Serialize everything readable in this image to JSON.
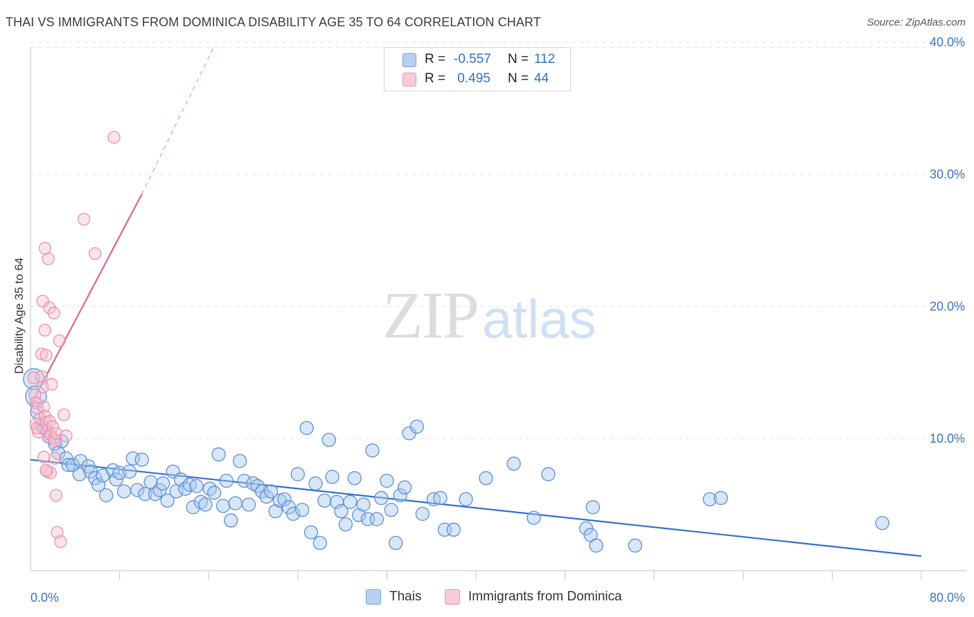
{
  "title": "THAI VS IMMIGRANTS FROM DOMINICA DISABILITY AGE 35 TO 64 CORRELATION CHART",
  "source": "Source: ZipAtlas.com",
  "watermark": {
    "zip": "ZIP",
    "atlas": "atlas"
  },
  "legend": {
    "rows": [
      {
        "r_label": "R =",
        "r_value": "-0.557",
        "n_label": "N =",
        "n_value": "112"
      },
      {
        "r_label": "R =",
        "r_value": " 0.495",
        "n_label": "N =",
        "n_value": "44"
      }
    ]
  },
  "bottom_legend": [
    "Thais",
    "Immigrants from Dominica"
  ],
  "colors": {
    "thai_fill": "#a9c7ee",
    "thai_stroke": "#5b8fd6",
    "thai_line": "#2f6fd0",
    "dom_fill": "#f6c3d3",
    "dom_stroke": "#e890ad",
    "dom_line": "#e0608e",
    "grid": "#e3e3e3",
    "tick": "#3a72c0"
  },
  "chart_data": {
    "type": "scatter",
    "title": "THAI VS IMMIGRANTS FROM DOMINICA DISABILITY AGE 35 TO 64 CORRELATION CHART",
    "xlabel": "",
    "ylabel": "Disability Age 35 to 64",
    "xlim": [
      0,
      80
    ],
    "ylim": [
      0,
      42
    ],
    "x_tick_labels": [
      "0.0%",
      "80.0%"
    ],
    "y_ticks": [
      10,
      20,
      30,
      40
    ],
    "y_tick_labels": [
      "10.0%",
      "20.0%",
      "30.0%",
      "40.0%"
    ],
    "grid": true,
    "legend_position": "top-center",
    "series": [
      {
        "name": "Thais",
        "R": -0.557,
        "N": 112,
        "trend": {
          "x": [
            0,
            80
          ],
          "y": [
            8.4,
            1.1
          ],
          "dashed_extension": false
        },
        "points": [
          [
            0.3,
            14.5
          ],
          [
            0.5,
            13.2
          ],
          [
            0.6,
            12.0
          ],
          [
            1.0,
            11.0
          ],
          [
            1.2,
            10.8
          ],
          [
            1.8,
            10.1
          ],
          [
            2.2,
            9.6
          ],
          [
            2.8,
            9.8
          ],
          [
            2.5,
            8.9
          ],
          [
            3.2,
            8.5
          ],
          [
            3.4,
            8.0
          ],
          [
            3.8,
            8.0
          ],
          [
            4.5,
            8.3
          ],
          [
            4.4,
            7.3
          ],
          [
            5.2,
            7.9
          ],
          [
            5.4,
            7.5
          ],
          [
            5.8,
            7.0
          ],
          [
            6.1,
            6.5
          ],
          [
            6.5,
            7.2
          ],
          [
            6.8,
            5.7
          ],
          [
            7.4,
            7.6
          ],
          [
            7.7,
            6.9
          ],
          [
            8.0,
            7.4
          ],
          [
            8.4,
            6.0
          ],
          [
            8.9,
            7.5
          ],
          [
            9.2,
            8.5
          ],
          [
            9.6,
            6.1
          ],
          [
            10.0,
            8.4
          ],
          [
            10.3,
            5.8
          ],
          [
            10.8,
            6.7
          ],
          [
            11.2,
            5.8
          ],
          [
            11.6,
            6.1
          ],
          [
            11.9,
            6.6
          ],
          [
            12.3,
            5.3
          ],
          [
            12.8,
            7.5
          ],
          [
            13.1,
            6.0
          ],
          [
            13.5,
            6.9
          ],
          [
            13.9,
            6.2
          ],
          [
            14.3,
            6.5
          ],
          [
            14.6,
            4.8
          ],
          [
            14.9,
            6.4
          ],
          [
            15.3,
            5.2
          ],
          [
            15.7,
            5.0
          ],
          [
            16.1,
            6.2
          ],
          [
            16.5,
            5.9
          ],
          [
            16.9,
            8.8
          ],
          [
            17.3,
            4.9
          ],
          [
            17.6,
            6.8
          ],
          [
            18.0,
            3.8
          ],
          [
            18.4,
            5.1
          ],
          [
            18.8,
            8.3
          ],
          [
            19.2,
            6.8
          ],
          [
            19.6,
            5.0
          ],
          [
            20.0,
            6.6
          ],
          [
            20.4,
            6.4
          ],
          [
            20.8,
            6.0
          ],
          [
            21.2,
            5.6
          ],
          [
            21.6,
            6.0
          ],
          [
            22.0,
            4.5
          ],
          [
            22.4,
            5.3
          ],
          [
            22.8,
            5.4
          ],
          [
            23.2,
            4.8
          ],
          [
            23.6,
            4.3
          ],
          [
            24.0,
            7.3
          ],
          [
            24.4,
            4.6
          ],
          [
            24.8,
            10.8
          ],
          [
            25.2,
            2.9
          ],
          [
            25.6,
            6.6
          ],
          [
            26.0,
            2.1
          ],
          [
            26.4,
            5.3
          ],
          [
            26.8,
            9.9
          ],
          [
            27.1,
            7.1
          ],
          [
            27.5,
            5.2
          ],
          [
            27.9,
            4.5
          ],
          [
            28.3,
            3.5
          ],
          [
            28.7,
            5.2
          ],
          [
            29.1,
            7.0
          ],
          [
            29.5,
            4.2
          ],
          [
            29.9,
            5.0
          ],
          [
            30.3,
            3.9
          ],
          [
            30.7,
            9.1
          ],
          [
            31.1,
            3.9
          ],
          [
            31.5,
            5.5
          ],
          [
            32.0,
            6.8
          ],
          [
            32.4,
            4.6
          ],
          [
            32.8,
            2.1
          ],
          [
            33.2,
            5.7
          ],
          [
            33.6,
            6.3
          ],
          [
            34.0,
            10.4
          ],
          [
            34.7,
            10.9
          ],
          [
            35.2,
            4.3
          ],
          [
            36.2,
            5.4
          ],
          [
            36.8,
            5.5
          ],
          [
            37.2,
            3.1
          ],
          [
            38.0,
            3.1
          ],
          [
            39.1,
            5.4
          ],
          [
            40.9,
            7.0
          ],
          [
            43.4,
            8.1
          ],
          [
            45.2,
            4.0
          ],
          [
            46.5,
            7.3
          ],
          [
            49.9,
            3.2
          ],
          [
            50.3,
            2.7
          ],
          [
            50.5,
            4.8
          ],
          [
            50.8,
            1.9
          ],
          [
            54.3,
            1.9
          ],
          [
            61.0,
            5.4
          ],
          [
            62.0,
            5.5
          ],
          [
            76.5,
            3.6
          ]
        ]
      },
      {
        "name": "Immigrants from Dominica",
        "R": 0.495,
        "N": 44,
        "trend": {
          "x": [
            0,
            10
          ],
          "y": [
            12.5,
            28.5
          ],
          "dashed_extension": {
            "x": [
              10,
              16.5
            ],
            "y": [
              28.5,
              39.7
            ]
          }
        },
        "points": [
          [
            0.3,
            14.6
          ],
          [
            0.4,
            13.3
          ],
          [
            0.5,
            12.7
          ],
          [
            0.6,
            12.3
          ],
          [
            0.5,
            11.1
          ],
          [
            0.7,
            10.5
          ],
          [
            0.6,
            10.8
          ],
          [
            0.9,
            11.5
          ],
          [
            1.0,
            14.7
          ],
          [
            1.1,
            13.9
          ],
          [
            1.2,
            12.4
          ],
          [
            1.3,
            11.7
          ],
          [
            1.4,
            11.2
          ],
          [
            1.5,
            10.6
          ],
          [
            1.6,
            10.1
          ],
          [
            1.7,
            11.3
          ],
          [
            1.8,
            10.3
          ],
          [
            2.0,
            10.9
          ],
          [
            2.1,
            10.0
          ],
          [
            2.2,
            9.8
          ],
          [
            2.3,
            10.4
          ],
          [
            1.9,
            14.1
          ],
          [
            1.0,
            16.4
          ],
          [
            1.3,
            18.2
          ],
          [
            1.1,
            20.4
          ],
          [
            1.7,
            19.9
          ],
          [
            2.1,
            19.5
          ],
          [
            1.6,
            23.6
          ],
          [
            1.3,
            24.4
          ],
          [
            2.6,
            17.4
          ],
          [
            1.4,
            16.3
          ],
          [
            1.2,
            8.6
          ],
          [
            1.5,
            7.5
          ],
          [
            1.8,
            7.4
          ],
          [
            1.4,
            7.6
          ],
          [
            2.2,
            8.5
          ],
          [
            2.3,
            5.7
          ],
          [
            2.4,
            2.9
          ],
          [
            2.7,
            2.2
          ],
          [
            3.0,
            11.8
          ],
          [
            4.8,
            26.6
          ],
          [
            5.8,
            24.0
          ],
          [
            7.5,
            32.8
          ],
          [
            3.2,
            10.2
          ]
        ]
      }
    ]
  }
}
